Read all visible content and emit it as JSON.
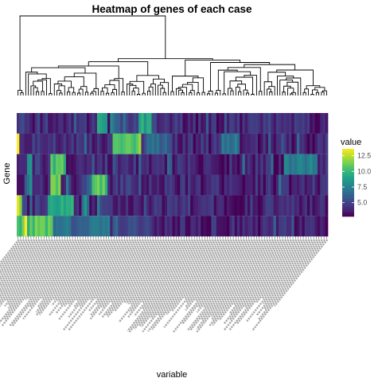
{
  "chart_data": {
    "type": "heatmap",
    "title": "Heatmap of genes of each case",
    "xlabel": "variable",
    "ylabel": "Gene",
    "legend": {
      "title": "value",
      "position": "right",
      "ticks": [
        12.5,
        10.0,
        7.5,
        5.0
      ],
      "tick_labels": [
        "12.5",
        "10.0",
        "7.5",
        "5.0"
      ],
      "range": [
        2.8,
        13.6
      ],
      "colormap": "viridis"
    },
    "n_columns": 120,
    "n_rows": 6,
    "column_labels_legible": false,
    "dendrogram": {
      "position": "top",
      "leaves": 120
    },
    "colors": {
      "viridis": [
        "#440154",
        "#482878",
        "#3e4989",
        "#31688e",
        "#26828e",
        "#1f9e89",
        "#35b779",
        "#6ece58",
        "#b5de2b",
        "#fde725"
      ],
      "background": "#ffffff",
      "text": "#000000",
      "tick_text": "#4d4d4d"
    }
  }
}
